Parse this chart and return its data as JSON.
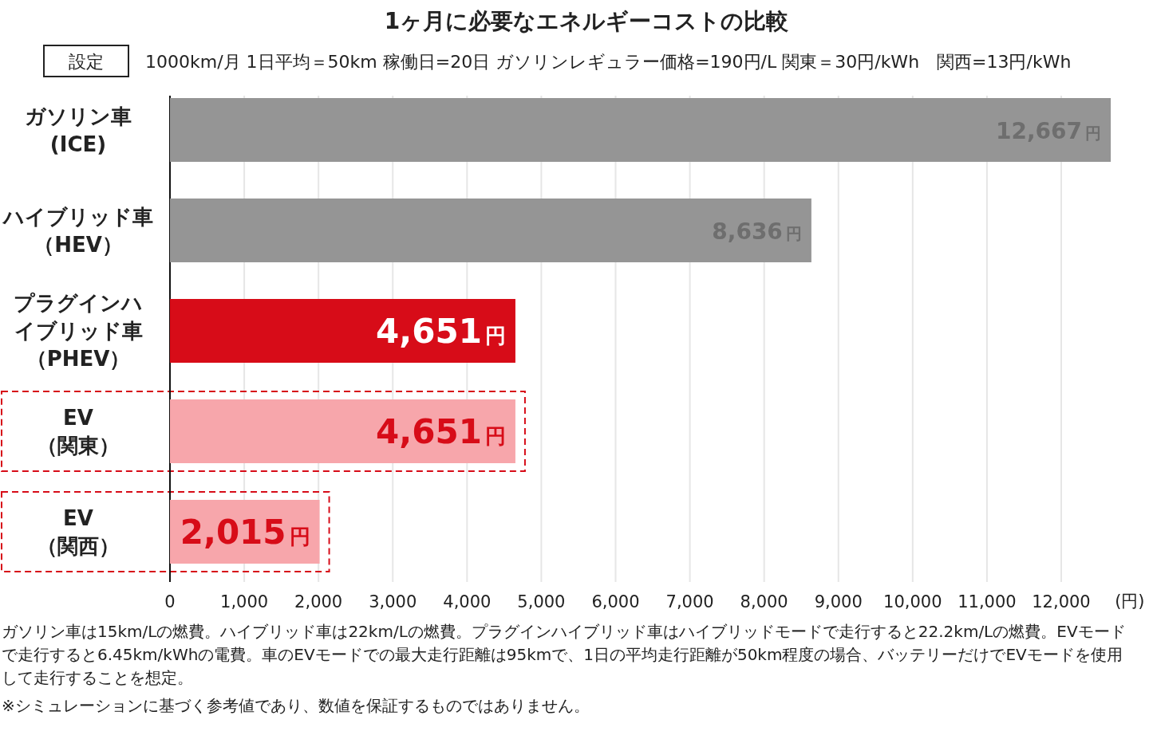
{
  "chart_data": {
    "type": "bar",
    "orientation": "horizontal",
    "title": "1ヶ月に必要なエネルギーコストの比較",
    "subtitle": "設定",
    "categories": [
      "ガソリン車(ICE)",
      "ハイブリッド車（HEV）",
      "プラグインハイブリッド車（PHEV）",
      "EV（関東）",
      "EV（関西）"
    ],
    "values": [
      12667,
      8636,
      4651,
      4651,
      2015
    ],
    "colors": [
      "#959595",
      "#959595",
      "#d70c18",
      "#f7a6ab",
      "#f7a6ab"
    ],
    "value_labels": [
      "12,667円",
      "8,636円",
      "4,651円",
      "4,651円",
      "2,015円"
    ],
    "xlim": [
      0,
      12700
    ],
    "xticks": [
      {
        "value": 0,
        "label": "0"
      },
      {
        "value": 1000,
        "label": "1,000"
      },
      {
        "value": 2000,
        "label": "2,000"
      },
      {
        "value": 3000,
        "label": "3,000"
      },
      {
        "value": 4000,
        "label": "4,000"
      },
      {
        "value": 5000,
        "label": "5,000"
      },
      {
        "value": 6000,
        "label": "6,000"
      },
      {
        "value": 7000,
        "label": "7,000"
      },
      {
        "value": 8000,
        "label": "8,000"
      },
      {
        "value": 9000,
        "label": "9,000"
      },
      {
        "value": 10000,
        "label": "10,000"
      },
      {
        "value": 11000,
        "label": "11,000"
      },
      {
        "value": 12000,
        "label": "12,000"
      }
    ],
    "xlabel": "(円)",
    "grid": "x",
    "annotations": [
      "1000km/月  1日平均＝50km  稼働日=20日  ガソリンレギュラー価格=190円/L  関東＝30円/kWh　関西=13円/kWh",
      "ガソリン車は15km/Lの燃費。ハイブリッド車は22km/Lの燃費。プラグインハイブリッド車はハイブリッドモードで走行すると22.2km/Lの燃費。EVモードで走行すると6.45km/kWhの電費。車のEVモードでの最大走行距離は95kmで、1日の平均走行距離が50km程度の場合、バッテリーだけでEVモードを使用して走行することを想定。",
      "※シミュレーションに基づく参考値であり、数値を保証するものではありません。"
    ]
  }
}
